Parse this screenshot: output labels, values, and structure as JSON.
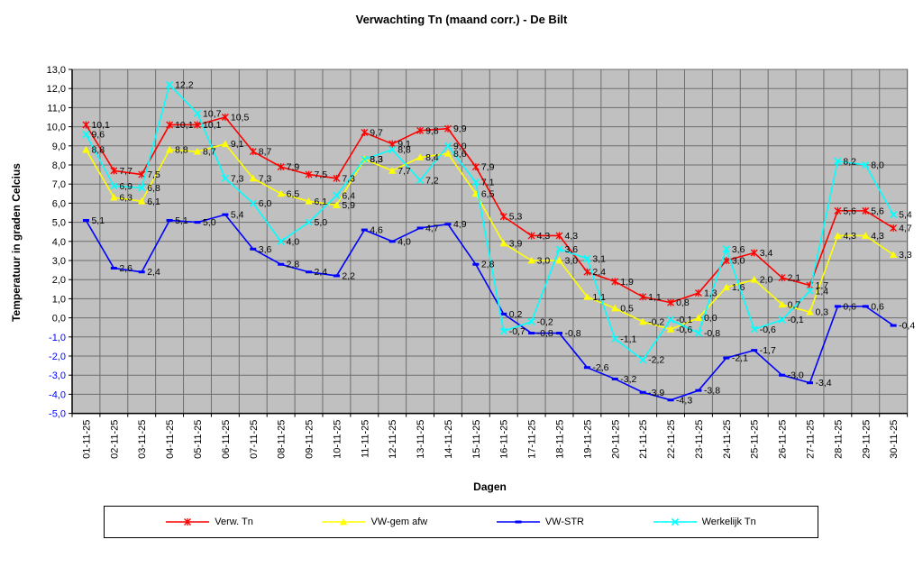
{
  "chart_data": {
    "type": "line",
    "title": "Verwachting Tn (maand corr.) - De Bilt",
    "xlabel": "Dagen",
    "ylabel": "Temperatuur in graden Celcius",
    "ylim": [
      -5,
      13
    ],
    "ytick_step": 1,
    "grid": true,
    "plot_bg": "#c0c0c0",
    "grid_color": "#6e6e6e",
    "axis_color": "#000000",
    "negative_tick_color": "#0000ff",
    "data_label_color": "#000000",
    "legend_position": "bottom",
    "decimal_separator": ",",
    "categories": [
      "01-11-25",
      "02-11-25",
      "03-11-25",
      "04-11-25",
      "05-11-25",
      "06-11-25",
      "07-11-25",
      "08-11-25",
      "09-11-25",
      "10-11-25",
      "11-11-25",
      "12-11-25",
      "13-11-25",
      "14-11-25",
      "15-11-25",
      "16-11-25",
      "17-11-25",
      "18-11-25",
      "19-11-25",
      "20-11-25",
      "21-11-25",
      "22-11-25",
      "23-11-25",
      "24-11-25",
      "25-11-25",
      "26-11-25",
      "27-11-25",
      "28-11-25",
      "29-11-25",
      "30-11-25"
    ],
    "series": [
      {
        "name": "Verw. Tn",
        "color": "#ff0000",
        "marker": "star",
        "values": [
          10.1,
          7.7,
          7.5,
          10.1,
          10.1,
          10.5,
          8.7,
          7.9,
          7.5,
          7.3,
          9.7,
          9.1,
          9.8,
          9.9,
          7.9,
          5.3,
          4.3,
          4.3,
          2.4,
          1.9,
          1.1,
          0.8,
          1.3,
          3.0,
          3.4,
          2.1,
          1.7,
          5.6,
          5.6,
          4.7
        ]
      },
      {
        "name": "VW-gem afw",
        "color": "#ffff00",
        "marker": "triangle",
        "values": [
          8.8,
          6.3,
          6.1,
          8.8,
          8.7,
          9.1,
          7.3,
          6.5,
          6.1,
          5.9,
          8.3,
          7.7,
          8.4,
          8.6,
          6.5,
          3.9,
          3.0,
          3.0,
          1.1,
          0.5,
          -0.2,
          -0.6,
          0.0,
          1.6,
          2.0,
          0.7,
          0.3,
          4.3,
          4.3,
          3.3
        ]
      },
      {
        "name": "VW-STR",
        "color": "#0000ff",
        "marker": "dash",
        "values": [
          5.1,
          2.6,
          2.4,
          5.1,
          5.0,
          5.4,
          3.6,
          2.8,
          2.4,
          2.2,
          4.6,
          4.0,
          4.7,
          4.9,
          2.8,
          0.2,
          -0.8,
          -0.8,
          -2.6,
          -3.2,
          -3.9,
          -4.3,
          -3.8,
          -2.1,
          -1.7,
          -3.0,
          -3.4,
          0.6,
          0.6,
          -0.4
        ]
      },
      {
        "name": "Werkelijk Tn",
        "color": "#00ffff",
        "marker": "x",
        "values": [
          9.6,
          6.9,
          6.8,
          12.2,
          10.7,
          7.3,
          6.0,
          4.0,
          5.0,
          6.4,
          8.3,
          8.8,
          7.2,
          9.0,
          7.1,
          -0.7,
          -0.2,
          3.6,
          3.1,
          -1.1,
          -2.2,
          -0.1,
          -0.8,
          3.6,
          -0.6,
          -0.1,
          1.4,
          8.2,
          8.0,
          5.4
        ]
      }
    ],
    "data_labels": true
  }
}
